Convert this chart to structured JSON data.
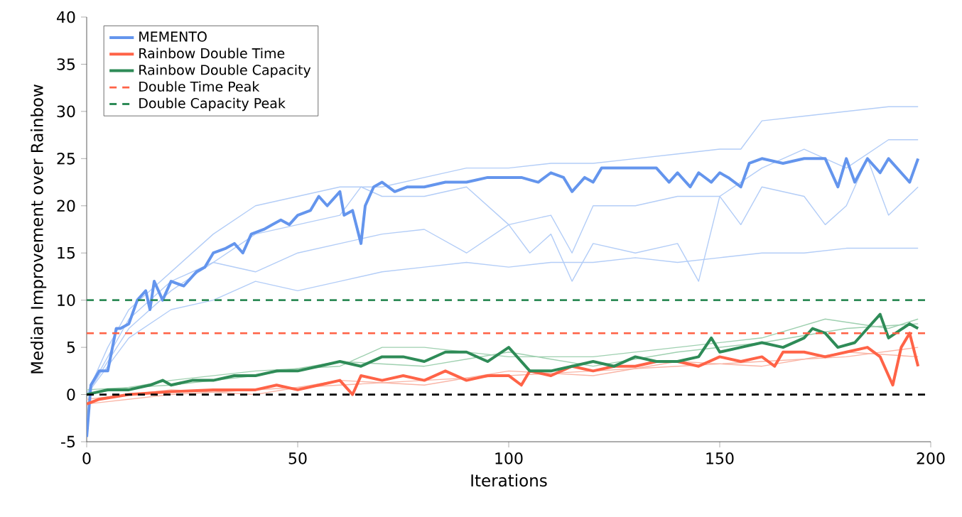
{
  "chart_data": {
    "type": "line",
    "xlabel": "Iterations",
    "ylabel": "Median Improvement over Rainbow",
    "xlim": [
      0,
      200
    ],
    "ylim": [
      -5,
      40
    ],
    "xticks": [
      0,
      50,
      100,
      150,
      200
    ],
    "yticks": [
      -5,
      0,
      5,
      10,
      15,
      20,
      25,
      30,
      35,
      40
    ],
    "grid": false,
    "legend": "top left",
    "series": [
      {
        "name": "MEMENTO",
        "color": "#6495ed",
        "x": [
          0,
          1,
          3,
          5,
          7,
          8,
          10,
          12,
          14,
          15,
          16,
          18,
          20,
          23,
          26,
          28,
          30,
          33,
          35,
          37,
          39,
          42,
          44,
          46,
          48,
          50,
          53,
          55,
          57,
          60,
          61,
          63,
          65,
          66,
          68,
          70,
          73,
          76,
          80,
          85,
          90,
          95,
          100,
          103,
          107,
          110,
          113,
          115,
          118,
          120,
          122,
          127,
          132,
          135,
          138,
          140,
          143,
          145,
          148,
          150,
          152,
          155,
          157,
          160,
          165,
          170,
          175,
          178,
          180,
          182,
          185,
          188,
          190,
          192,
          195,
          197
        ],
        "values": [
          -4.5,
          1,
          2.5,
          2.5,
          7,
          7,
          7.5,
          10,
          11,
          9,
          12,
          10,
          12,
          11.5,
          13,
          13.5,
          15,
          15.5,
          16,
          15,
          17,
          17.5,
          18,
          18.5,
          18,
          19,
          19.5,
          21,
          20,
          21.5,
          19,
          19.5,
          16,
          20,
          22,
          22.5,
          21.5,
          22,
          22,
          22.5,
          22.5,
          23,
          23,
          23,
          22.5,
          23.5,
          23,
          21.5,
          23,
          22.5,
          24,
          24,
          24,
          24,
          22.5,
          23.5,
          22,
          23.5,
          22.5,
          23.5,
          23,
          22,
          24.5,
          25,
          24.5,
          25,
          25,
          22,
          25,
          22.5,
          25,
          23.5,
          25,
          24,
          22.5,
          25
        ]
      },
      {
        "name": "Rainbow Double Time",
        "color": "#ff6347",
        "x": [
          0,
          3,
          10,
          20,
          30,
          40,
          45,
          50,
          55,
          60,
          63,
          65,
          70,
          75,
          80,
          85,
          90,
          95,
          100,
          103,
          105,
          110,
          115,
          120,
          125,
          130,
          135,
          140,
          145,
          150,
          155,
          160,
          163,
          165,
          170,
          175,
          180,
          185,
          188,
          191,
          193,
          195,
          197
        ],
        "values": [
          -1,
          -0.5,
          0,
          0.3,
          0.5,
          0.5,
          1,
          0.5,
          1,
          1.5,
          0,
          2,
          1.5,
          2,
          1.5,
          2.5,
          1.5,
          2,
          2,
          1,
          2.5,
          2,
          3,
          2.5,
          3,
          3,
          3.5,
          3.5,
          3,
          4,
          3.5,
          4,
          3,
          4.5,
          4.5,
          4,
          4.5,
          5,
          4,
          1,
          5,
          6.5,
          3
        ]
      },
      {
        "name": "Rainbow Double Capacity",
        "color": "#2e8b57",
        "x": [
          0,
          5,
          10,
          15,
          18,
          20,
          25,
          30,
          35,
          40,
          45,
          50,
          55,
          60,
          65,
          70,
          75,
          80,
          85,
          90,
          95,
          100,
          103,
          105,
          110,
          115,
          120,
          125,
          130,
          135,
          140,
          145,
          148,
          150,
          155,
          160,
          165,
          170,
          172,
          175,
          178,
          182,
          185,
          188,
          190,
          195,
          197
        ],
        "values": [
          0,
          0.5,
          0.5,
          1,
          1.5,
          1,
          1.5,
          1.5,
          2,
          2,
          2.5,
          2.5,
          3,
          3.5,
          3,
          4,
          4,
          3.5,
          4.5,
          4.5,
          3.5,
          5,
          3.5,
          2.5,
          2.5,
          3,
          3.5,
          3,
          4,
          3.5,
          3.5,
          4,
          6,
          4.5,
          5,
          5.5,
          5,
          6,
          7,
          6.5,
          5,
          5.5,
          7,
          8.5,
          6,
          7.5,
          7
        ]
      },
      {
        "color": "#b3cdf7",
        "x": [
          0,
          5,
          10,
          20,
          30,
          40,
          50,
          60,
          70,
          80,
          90,
          100,
          110,
          120,
          130,
          140,
          150,
          155,
          160,
          170,
          180,
          190,
          197
        ],
        "values": [
          0,
          5,
          9,
          13,
          17,
          20,
          21,
          22,
          22,
          23,
          24,
          24,
          24.5,
          24.5,
          25,
          25.5,
          26,
          26,
          29,
          29.5,
          30,
          30.5,
          30.5
        ]
      },
      {
        "color": "#b3cdf7",
        "x": [
          0,
          10,
          20,
          30,
          40,
          50,
          60,
          70,
          80,
          90,
          100,
          110,
          120,
          130,
          140,
          150,
          160,
          170,
          180,
          190,
          197
        ],
        "values": [
          0,
          6,
          9,
          10,
          12,
          11,
          12,
          13,
          13.5,
          14,
          13.5,
          14,
          14,
          14.5,
          14,
          14.5,
          15,
          15,
          15.5,
          15.5,
          15.5
        ]
      },
      {
        "color": "#b3cdf7",
        "x": [
          0,
          10,
          20,
          30,
          40,
          50,
          60,
          70,
          80,
          90,
          100,
          110,
          115,
          120,
          130,
          140,
          150,
          160,
          170,
          180,
          190,
          197
        ],
        "values": [
          0,
          8,
          12,
          14,
          13,
          15,
          16,
          17,
          17.5,
          15,
          18,
          19,
          15,
          20,
          20,
          21,
          21,
          24,
          26,
          24,
          27,
          27
        ]
      },
      {
        "color": "#b3cdf7",
        "x": [
          0,
          10,
          20,
          30,
          40,
          50,
          60,
          65,
          70,
          80,
          90,
          100,
          105,
          110,
          115,
          120,
          130,
          140,
          145,
          150,
          155,
          160,
          170,
          175,
          180,
          185,
          190,
          197
        ],
        "values": [
          0,
          7,
          11,
          14,
          17,
          18,
          19,
          22,
          21,
          21,
          22,
          18,
          15,
          17,
          12,
          16,
          15,
          16,
          12,
          21,
          18,
          22,
          21,
          18,
          20,
          25,
          19,
          22
        ]
      },
      {
        "color": "#f9b5a6",
        "x": [
          0,
          20,
          40,
          60,
          80,
          100,
          120,
          140,
          160,
          180,
          197
        ],
        "values": [
          -1,
          0,
          0.5,
          1,
          1.5,
          2,
          2.5,
          3,
          3.5,
          4,
          5
        ]
      },
      {
        "color": "#f9b5a6",
        "x": [
          0,
          20,
          40,
          60,
          80,
          100,
          120,
          140,
          160,
          180,
          197
        ],
        "values": [
          -0.5,
          0.5,
          0,
          1.5,
          1,
          2.5,
          2,
          3.5,
          3,
          4.5,
          4
        ]
      },
      {
        "color": "#9fd0b0",
        "x": [
          0,
          20,
          40,
          60,
          70,
          80,
          100,
          120,
          140,
          160,
          175,
          190,
          197
        ],
        "values": [
          0,
          1.5,
          2.5,
          3,
          5,
          5,
          4,
          4,
          5,
          6,
          8,
          7,
          8
        ]
      },
      {
        "color": "#9fd0b0",
        "x": [
          0,
          20,
          40,
          60,
          80,
          100,
          120,
          140,
          160,
          180,
          197
        ],
        "values": [
          0.5,
          1,
          2,
          3.5,
          3,
          4.5,
          3,
          4.5,
          5.5,
          7,
          7.5
        ]
      }
    ],
    "ref_lines": [
      {
        "axis": "y",
        "value": 6.5,
        "label": "Double Time Peak",
        "color": "#ff6347",
        "line_style": "dashed"
      },
      {
        "axis": "y",
        "value": 10,
        "label": "Double Capacity Peak",
        "color": "#2e8b57",
        "line_style": "dashed"
      },
      {
        "axis": "y",
        "value": 0,
        "color": "#000000",
        "line_style": "dashed"
      }
    ]
  }
}
